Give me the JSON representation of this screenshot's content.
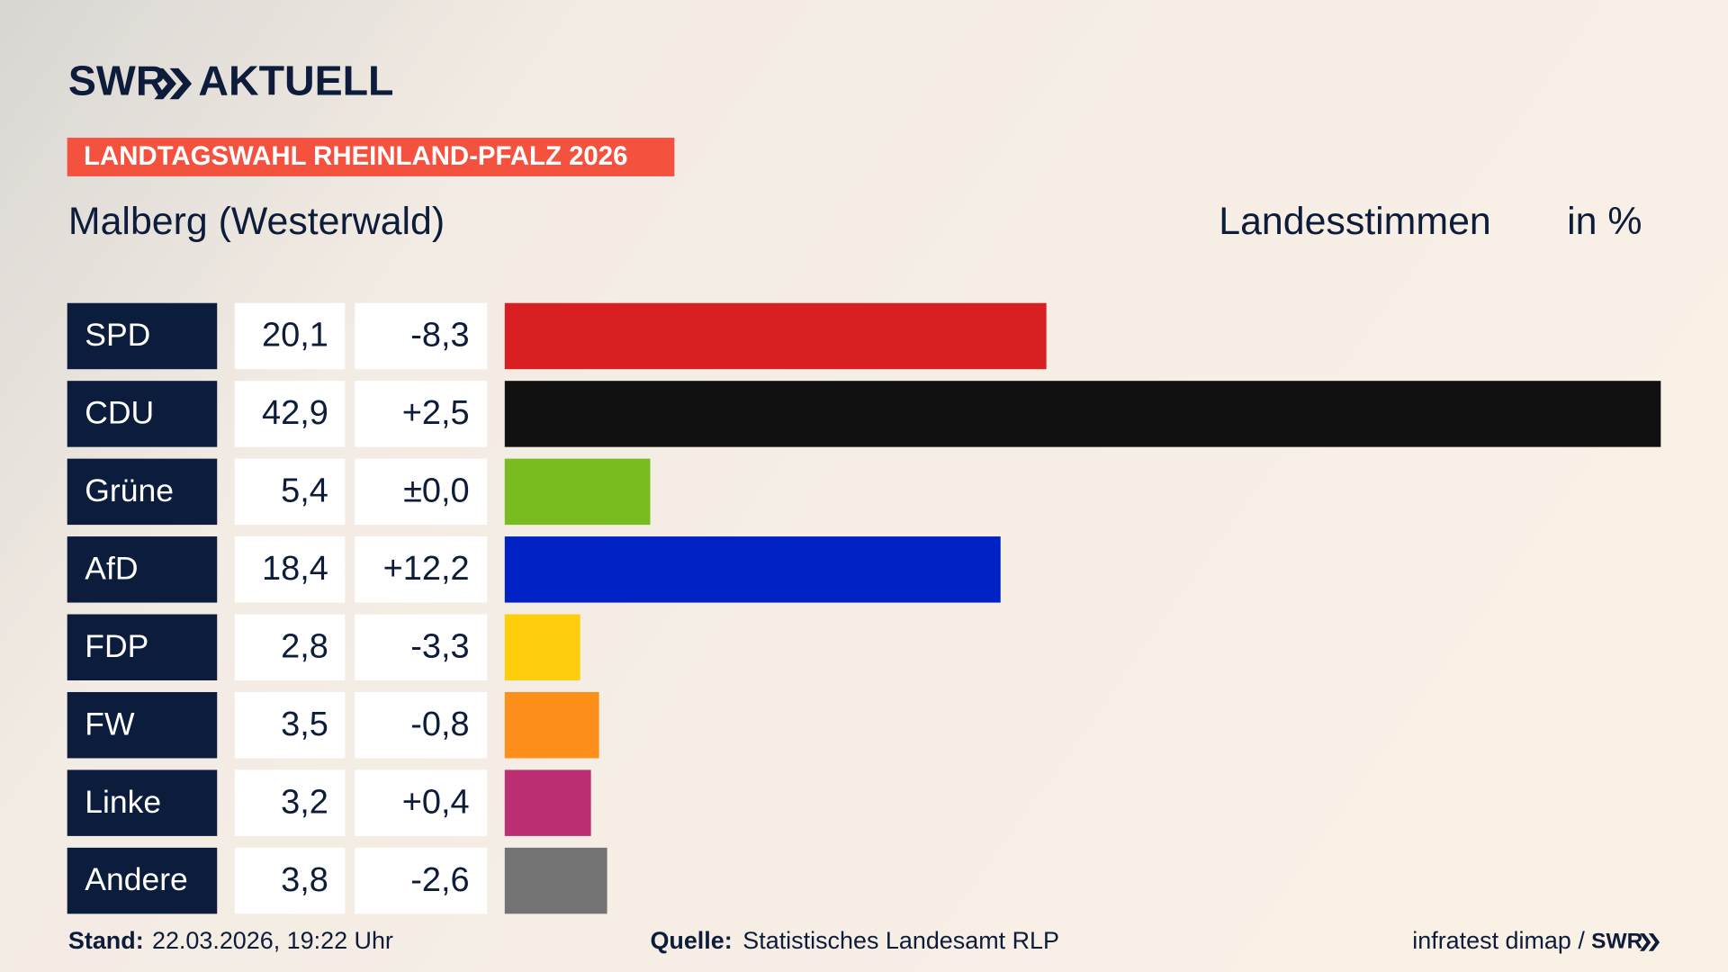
{
  "chart_data": {
    "type": "bar",
    "brand": "SWR",
    "brand_suffix": "AKTUELL",
    "kicker": "LANDTAGSWAHL RHEINLAND-PFALZ 2026",
    "title": "Malberg (Westerwald)",
    "value_heading": "Landesstimmen",
    "unit_heading": "in %",
    "categories": [
      "SPD",
      "CDU",
      "Grüne",
      "AfD",
      "FDP",
      "FW",
      "Linke",
      "Andere"
    ],
    "values": [
      20.1,
      42.9,
      5.4,
      18.4,
      2.8,
      3.5,
      3.2,
      3.8
    ],
    "value_labels": [
      "20,1",
      "42,9",
      "5,4",
      "18,4",
      "2,8",
      "3,5",
      "3,2",
      "3,8"
    ],
    "changes": [
      -8.3,
      2.5,
      0,
      12.2,
      -3.3,
      -0.8,
      0.4,
      -2.6
    ],
    "change_labels": [
      "-8,3",
      "+2,5",
      "±0,0",
      "+12,2",
      "-3,3",
      "-0,8",
      "+0,4",
      "-2,6"
    ],
    "colors": [
      "#d81f22",
      "#111111",
      "#79bc1f",
      "#0022c5",
      "#fecd0b",
      "#fd8f1a",
      "#bc2f73",
      "#737373"
    ],
    "xlim": [
      0,
      42.9
    ],
    "footer": {
      "stand_label": "Stand:",
      "stand": "22.03.2026, 19:22 Uhr",
      "source_label": "Quelle:",
      "source": "Statistisches Landesamt RLP",
      "credit": "infratest dimap /",
      "credit_brand": "SWR"
    }
  }
}
